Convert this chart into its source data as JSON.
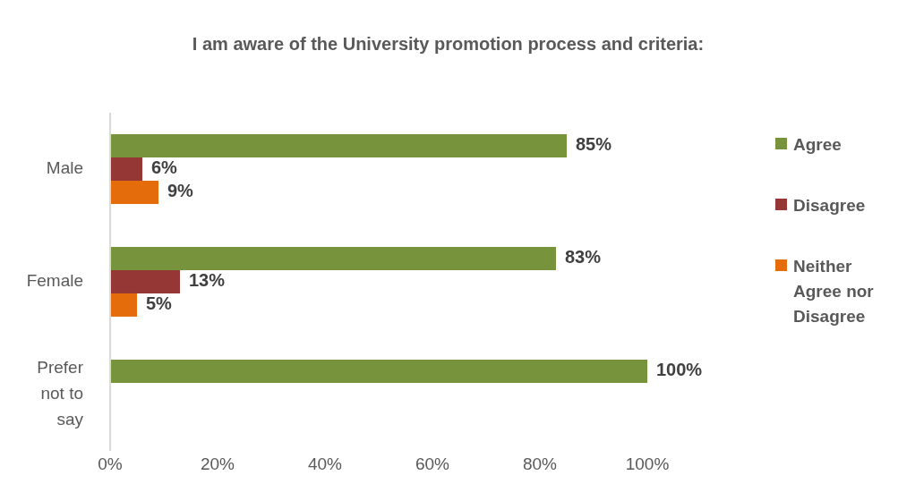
{
  "chart_data": {
    "type": "bar",
    "orientation": "horizontal",
    "title": "I am aware of the University promotion process and criteria:",
    "categories": [
      "Male",
      "Female",
      "Prefer not to say"
    ],
    "series": [
      {
        "name": "Agree",
        "color": "#77933c",
        "values": [
          85,
          83,
          100
        ],
        "value_labels": [
          "85%",
          "83%",
          "100%"
        ]
      },
      {
        "name": "Disagree",
        "color": "#953735",
        "values": [
          6,
          13,
          null
        ],
        "value_labels": [
          "6%",
          "13%",
          null
        ]
      },
      {
        "name": "Neither Agree nor Disagree",
        "color": "#e46c0a",
        "values": [
          9,
          5,
          null
        ],
        "value_labels": [
          "9%",
          "5%",
          null
        ]
      }
    ],
    "xlim": [
      0,
      100
    ],
    "xticks": [
      {
        "value": 0,
        "label": "0%"
      },
      {
        "value": 20,
        "label": "20%"
      },
      {
        "value": 40,
        "label": "40%"
      },
      {
        "value": 60,
        "label": "60%"
      },
      {
        "value": 80,
        "label": "80%"
      },
      {
        "value": 100,
        "label": "100%"
      }
    ],
    "grid": false,
    "legend": "right"
  }
}
